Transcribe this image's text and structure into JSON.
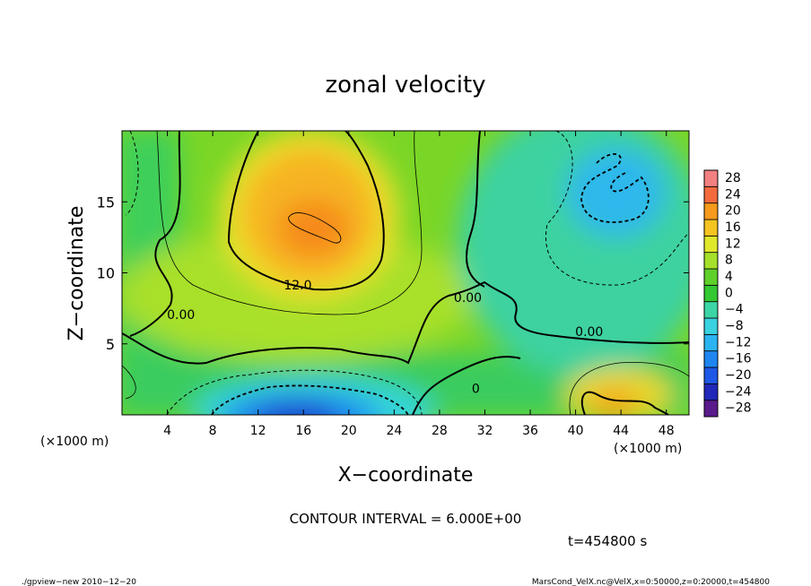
{
  "chart_data": {
    "type": "heatmap",
    "title": "zonal velocity",
    "xlabel": "X−coordinate",
    "ylabel": "Z−coordinate",
    "x_unit": "(×1000 m)",
    "xlim": [
      0,
      50
    ],
    "ylim": [
      0,
      20
    ],
    "xticks": [
      4,
      8,
      12,
      16,
      20,
      24,
      28,
      32,
      36,
      40,
      44,
      48
    ],
    "yticks": [
      5,
      10,
      15
    ],
    "contour_interval_text": "CONTOUR INTERVAL = 6.000E+00",
    "time_text": "t=454800 s",
    "contour_labels": [
      {
        "text": "12.0",
        "x": 15.5,
        "y": 8.9
      },
      {
        "text": "0.00",
        "x": 30.5,
        "y": 8.0
      },
      {
        "text": "0.00",
        "x": 5.2,
        "y": 6.8
      },
      {
        "text": "0.00",
        "x": 41.2,
        "y": 5.6
      },
      {
        "text": "0",
        "x": 31.2,
        "y": 1.6
      }
    ],
    "colorbar": {
      "levels": [
        -28,
        -24,
        -20,
        -16,
        -12,
        -8,
        -4,
        0,
        4,
        8,
        12,
        16,
        20,
        24,
        28
      ],
      "labels": [
        "28",
        "24",
        "20",
        "16",
        "12",
        "8",
        "4",
        "0",
        "−4",
        "−8",
        "−12",
        "−16",
        "−20",
        "−24",
        "−28"
      ],
      "colors": [
        "#5a1a8c",
        "#1f28b8",
        "#1e58e6",
        "#1f86f0",
        "#2cb4f2",
        "#38d2e0",
        "#3cd6a6",
        "#34c832",
        "#5fd02a",
        "#a5e02a",
        "#e0e82c",
        "#f5c420",
        "#f59a1c",
        "#f46a3c",
        "#f28080"
      ]
    },
    "field_features": [
      {
        "kind": "max",
        "x": 17.0,
        "y": 13.5,
        "value": 18
      },
      {
        "kind": "min",
        "x": 16.5,
        "y": 1.0,
        "value": -22
      },
      {
        "kind": "min",
        "x": 43.5,
        "y": 15.0,
        "value": -10
      },
      {
        "kind": "max",
        "x": 44.5,
        "y": 1.0,
        "value": 14
      }
    ]
  },
  "footer": {
    "left": "./gpview−new   2010−12−20",
    "right": "MarsCond_VelX.nc@VelX,x=0:50000,z=0:20000,t=454800"
  }
}
